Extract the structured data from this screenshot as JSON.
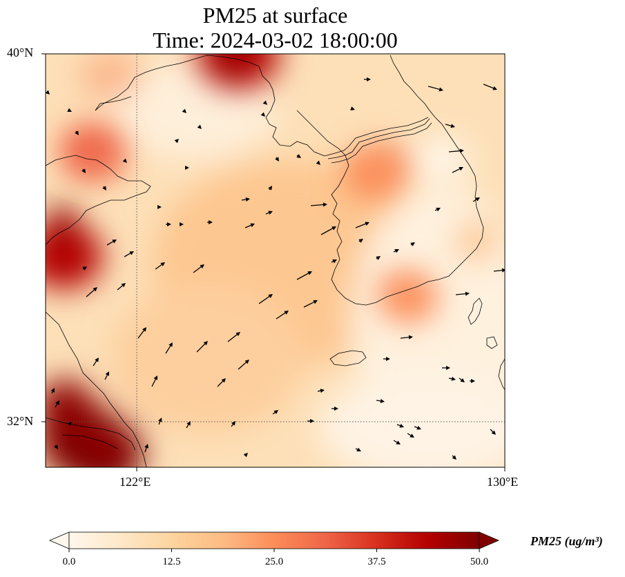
{
  "title_line1": "PM25 at surface",
  "title_line2": "Time: 2024-03-02 18:00:00",
  "map": {
    "extent": {
      "lon_min": 120,
      "lon_max": 130,
      "lat_min": 31,
      "lat_max": 40
    },
    "gridlines": {
      "lon": [
        122
      ],
      "lat": [
        32
      ],
      "style": "dotted"
    },
    "lat_labels": [
      {
        "text": "40°N",
        "lat": 40
      },
      {
        "text": "32°N",
        "lat": 32
      }
    ],
    "lon_labels": [
      {
        "text": "122°E",
        "lon": 122
      },
      {
        "text": "130°E",
        "lon": 130
      }
    ],
    "pollution_hotspots": [
      {
        "lon": 120.8,
        "lat": 31.6,
        "pm25": 50
      },
      {
        "lon": 121.2,
        "lat": 31.3,
        "pm25": 48
      },
      {
        "lon": 120.4,
        "lat": 35.6,
        "pm25": 42
      },
      {
        "lon": 124.2,
        "lat": 40.0,
        "pm25": 46
      },
      {
        "lon": 121.0,
        "lat": 37.9,
        "pm25": 30
      },
      {
        "lon": 127.1,
        "lat": 37.4,
        "pm25": 28
      },
      {
        "lon": 127.9,
        "lat": 34.7,
        "pm25": 27
      }
    ]
  },
  "colorbar": {
    "label": "PM25 (ug/m³)",
    "ticks": [
      "0.0",
      "12.5",
      "25.0",
      "37.5",
      "50.0"
    ],
    "vmin": 0,
    "vmax": 50,
    "colormap": "OrRd",
    "colors": [
      "#fff7ec",
      "#fee8c8",
      "#fdd49e",
      "#fdbb84",
      "#fc8d59",
      "#ef6548",
      "#d7301f",
      "#b30000",
      "#7f0000"
    ]
  }
}
